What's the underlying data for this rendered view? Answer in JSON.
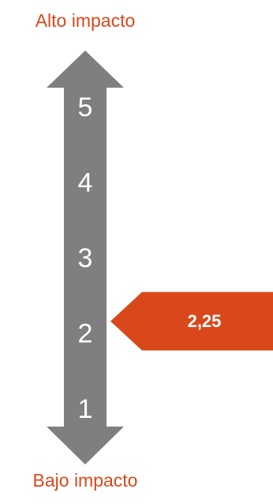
{
  "scale": {
    "top_label": "Alto impacto",
    "bottom_label": "Bajo impacto",
    "levels": [
      "1",
      "2",
      "3",
      "4",
      "5"
    ],
    "min": 1,
    "max": 5
  },
  "marker": {
    "value": 2.25,
    "label": "2,25"
  },
  "colors": {
    "arrow": "#7f7f7f",
    "accent": "#d9481b",
    "label_text": "#d9481b",
    "level_text": "#ffffff",
    "marker_text": "#ffffff"
  }
}
